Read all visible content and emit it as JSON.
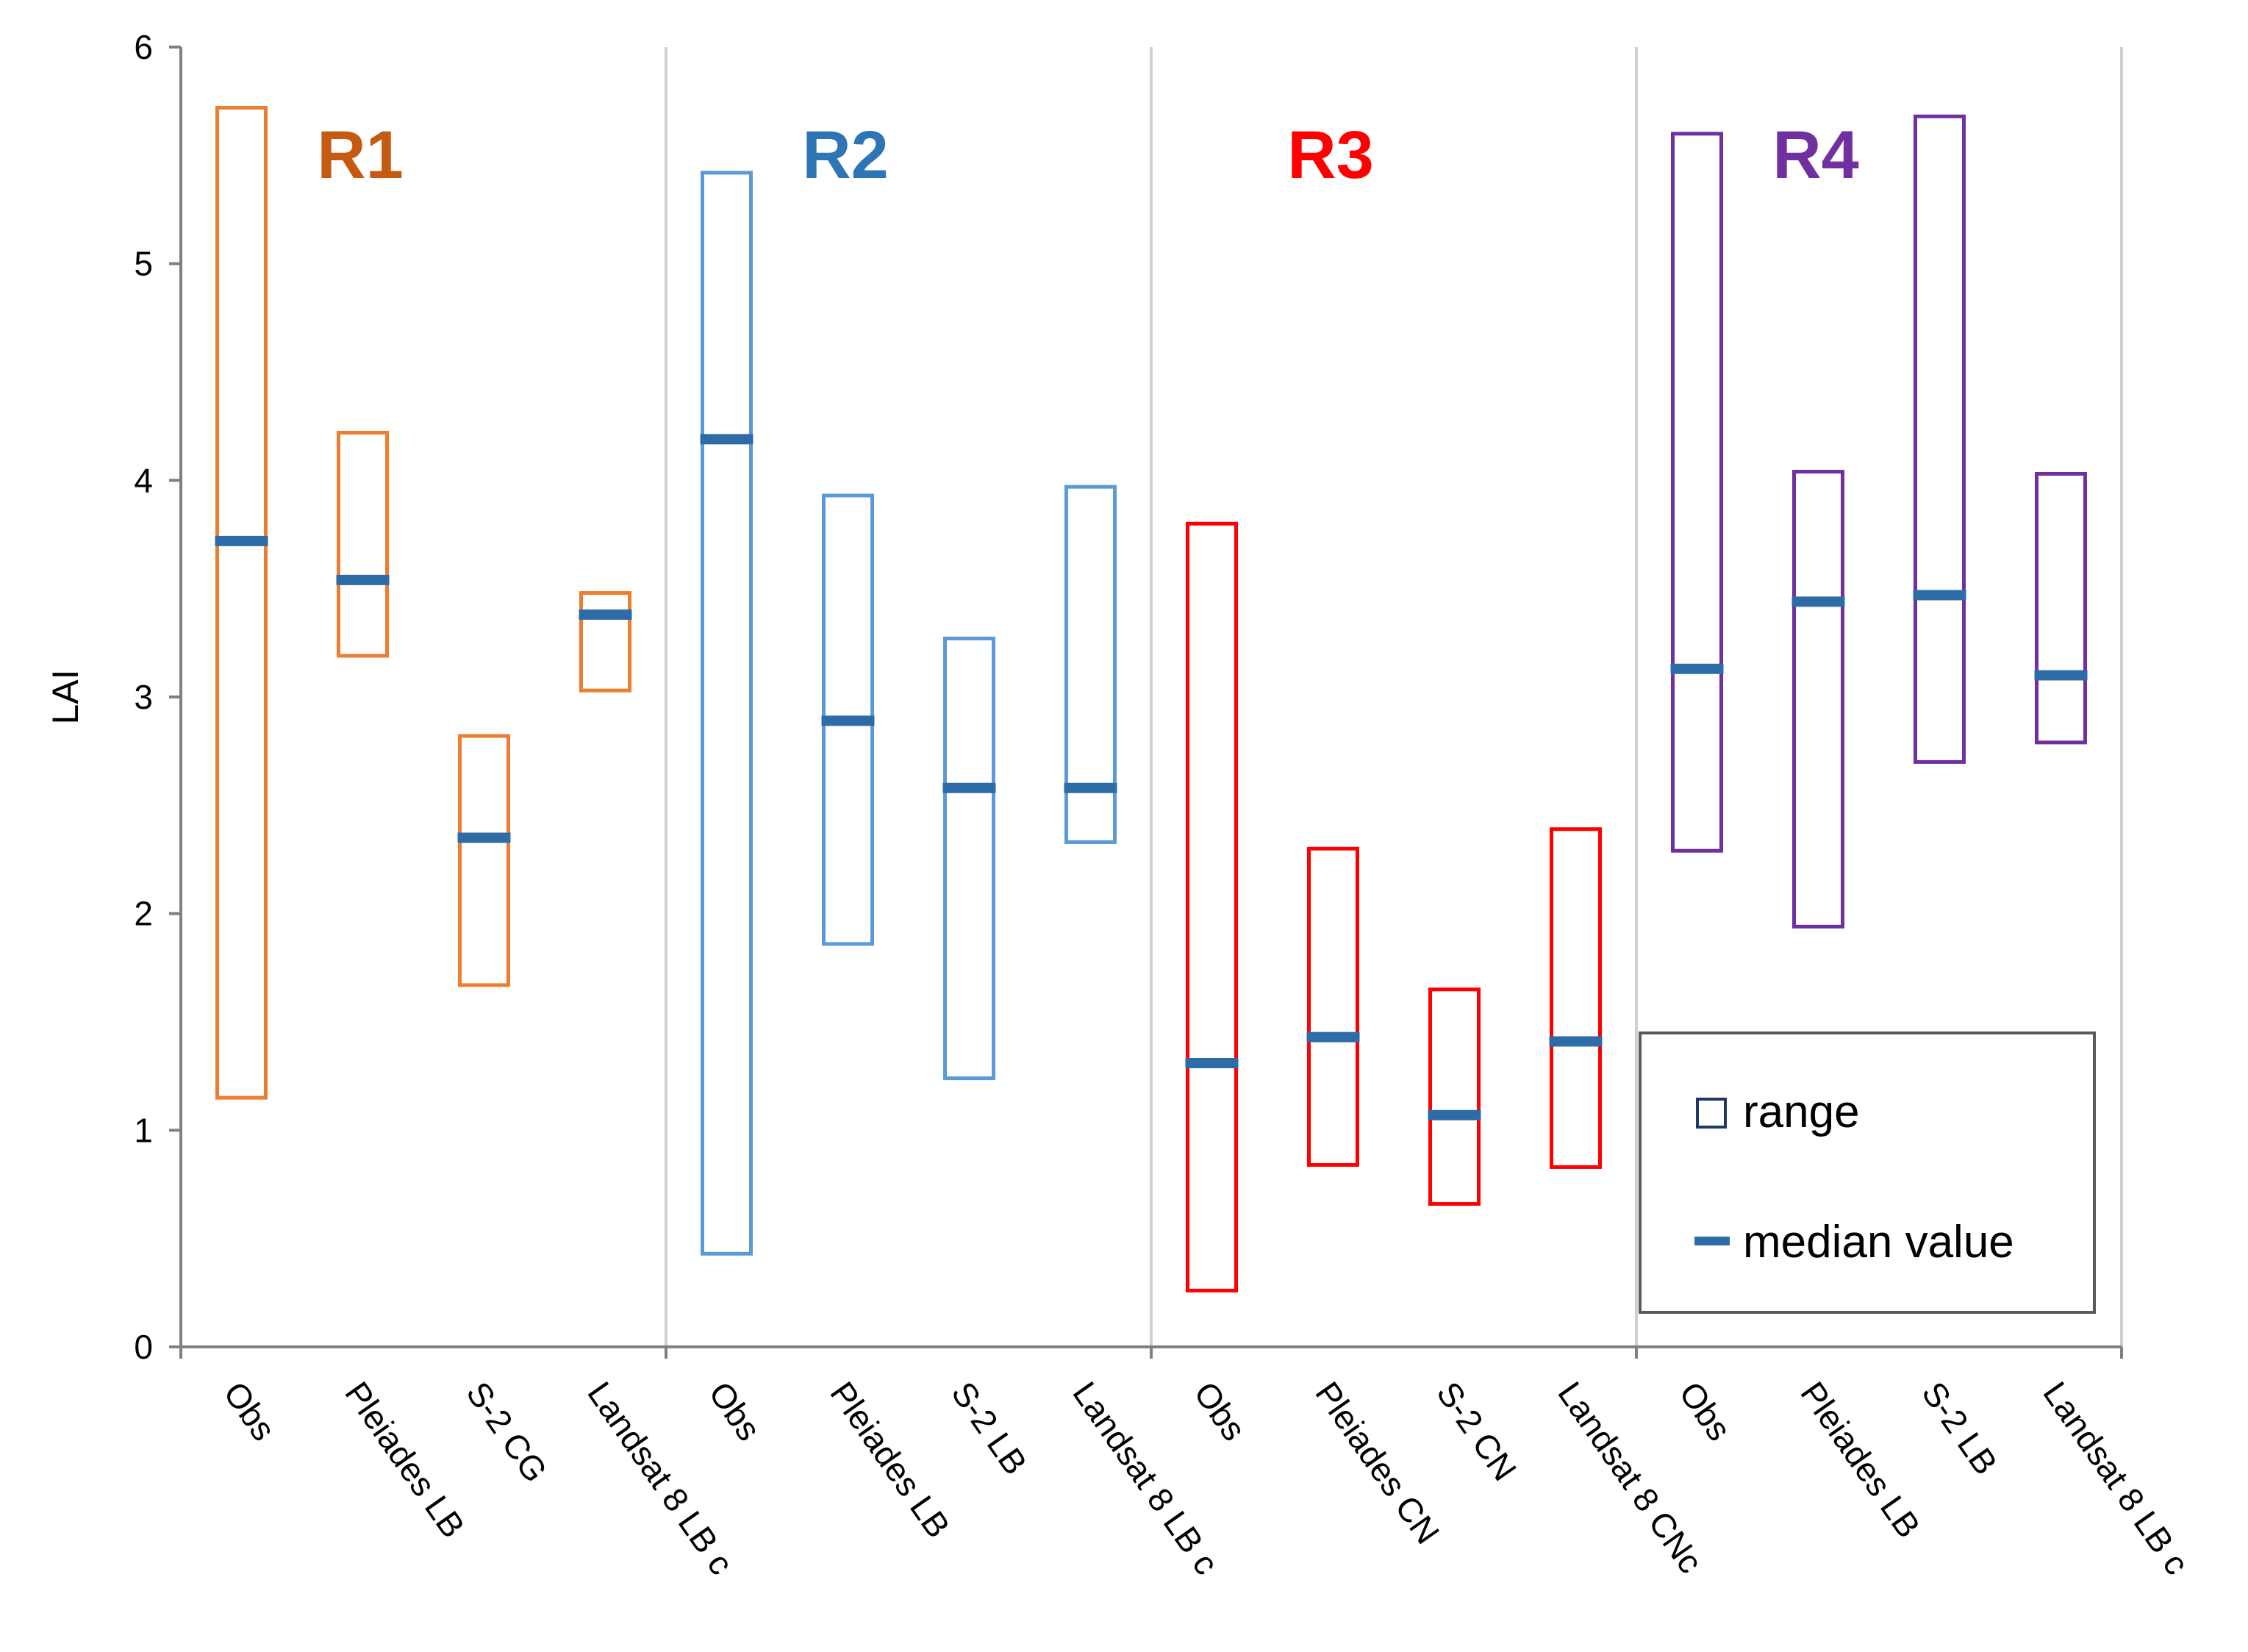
{
  "chart_data": {
    "type": "range-bar",
    "title": "",
    "xlabel": "",
    "ylabel": "LAI",
    "ylim": [
      0,
      6
    ],
    "yticks": [
      0,
      1,
      2,
      3,
      4,
      5,
      6
    ],
    "legend": {
      "position": "bottom-right",
      "entries": [
        {
          "label": "range",
          "marker": "box"
        },
        {
          "label": "median value",
          "marker": "dash"
        }
      ]
    },
    "colors": {
      "median": "#2e6ca8",
      "axis": "#808080",
      "grid": "#d0d0d0"
    },
    "groups": [
      {
        "name": "R1",
        "color": "#ed7d31",
        "label_color": "#c55a11",
        "items": [
          {
            "category": "Obs",
            "min": 1.15,
            "max": 5.72,
            "median": 3.72
          },
          {
            "category": "Pleiades LB",
            "min": 3.19,
            "max": 4.22,
            "median": 3.54
          },
          {
            "category": "S-2 CG",
            "min": 1.67,
            "max": 2.82,
            "median": 2.35
          },
          {
            "category": "Landsat 8 LB c",
            "min": 3.03,
            "max": 3.48,
            "median": 3.38
          }
        ]
      },
      {
        "name": "R2",
        "color": "#5b9bd5",
        "label_color": "#2e75b6",
        "items": [
          {
            "category": "Obs",
            "min": 0.43,
            "max": 5.42,
            "median": 4.19
          },
          {
            "category": "Pleiades LB",
            "min": 1.86,
            "max": 3.93,
            "median": 2.89
          },
          {
            "category": "S-2 LB",
            "min": 1.24,
            "max": 3.27,
            "median": 2.58
          },
          {
            "category": "Landsat 8 LB c",
            "min": 2.33,
            "max": 3.97,
            "median": 2.58
          }
        ]
      },
      {
        "name": "R3",
        "color": "#ff0000",
        "label_color": "#ff0000",
        "items": [
          {
            "category": "Obs",
            "min": 0.26,
            "max": 3.8,
            "median": 1.31
          },
          {
            "category": "Pleiades CN",
            "min": 0.84,
            "max": 2.3,
            "median": 1.43
          },
          {
            "category": "S-2 CN",
            "min": 0.66,
            "max": 1.65,
            "median": 1.07
          },
          {
            "category": "Landsat 8 CNc",
            "min": 0.83,
            "max": 2.39,
            "median": 1.41
          }
        ]
      },
      {
        "name": "R4",
        "color": "#7030a0",
        "label_color": "#7030a0",
        "items": [
          {
            "category": "Obs",
            "min": 2.29,
            "max": 5.6,
            "median": 3.13
          },
          {
            "category": "Pleiades LB",
            "min": 1.94,
            "max": 4.04,
            "median": 3.44
          },
          {
            "category": "S-2 LB",
            "min": 2.7,
            "max": 5.68,
            "median": 3.47
          },
          {
            "category": "Landsat 8 LB c",
            "min": 2.79,
            "max": 4.03,
            "median": 3.1
          }
        ]
      }
    ]
  }
}
